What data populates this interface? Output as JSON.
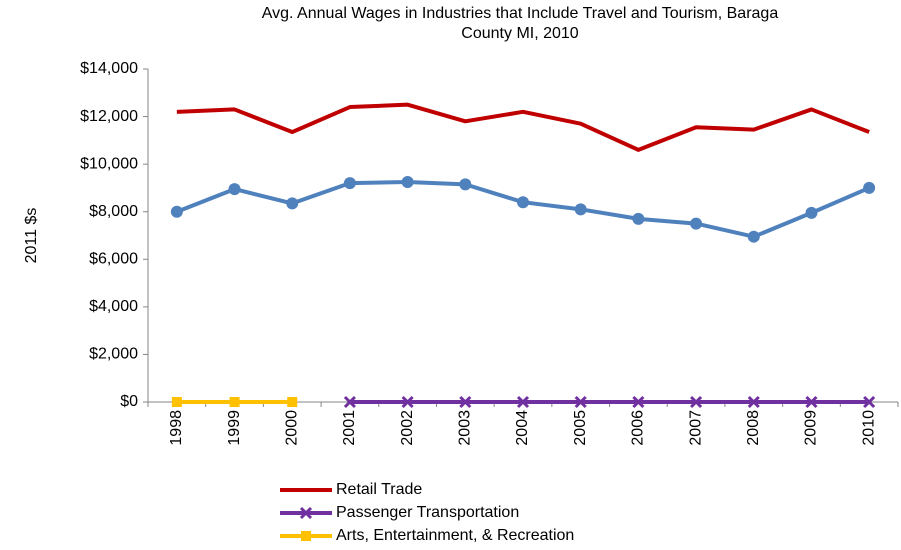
{
  "chart_data": {
    "type": "line",
    "title": "Avg. Annual Wages in Industries that Include Travel and Tourism, Baraga County MI, 2010",
    "y_label": "2011 $s",
    "categories": [
      "1998",
      "1999",
      "2000",
      "2001",
      "2002",
      "2003",
      "2004",
      "2005",
      "2006",
      "2007",
      "2008",
      "2009",
      "2010"
    ],
    "series": [
      {
        "name": "Retail Trade",
        "color": "#c00000",
        "values": [
          12200,
          12300,
          11350,
          12400,
          12500,
          11800,
          12200,
          11700,
          10600,
          11550,
          11450,
          12300,
          11350
        ]
      },
      {
        "color": "#4f81bd",
        "marker": "circle",
        "values": [
          8000,
          8950,
          8350,
          9200,
          9250,
          9150,
          8400,
          8100,
          7700,
          7500,
          6950,
          7950,
          9000
        ]
      },
      {
        "name": "Passenger Transportation",
        "color": "#7030a0",
        "marker": "x",
        "values": [
          null,
          null,
          null,
          0,
          0,
          0,
          0,
          0,
          0,
          0,
          0,
          0,
          0
        ]
      },
      {
        "name": "Arts, Entertainment, & Recreation",
        "color": "#ffc000",
        "marker": "square",
        "values": [
          0,
          0,
          0,
          null,
          null,
          null,
          null,
          null,
          null,
          null,
          null,
          null,
          null
        ]
      }
    ],
    "ylim": [
      0,
      14000
    ],
    "yticks": [
      {
        "value": 0,
        "label": "$0"
      },
      {
        "value": 2000,
        "label": "$2,000"
      },
      {
        "value": 4000,
        "label": "$4,000"
      },
      {
        "value": 6000,
        "label": "$6,000"
      },
      {
        "value": 8000,
        "label": "$8,000"
      },
      {
        "value": 10000,
        "label": "$10,000"
      },
      {
        "value": 12000,
        "label": "$12,000"
      },
      {
        "value": 14000,
        "label": "$14,000"
      }
    ],
    "grid": false,
    "legend": "bottom"
  }
}
